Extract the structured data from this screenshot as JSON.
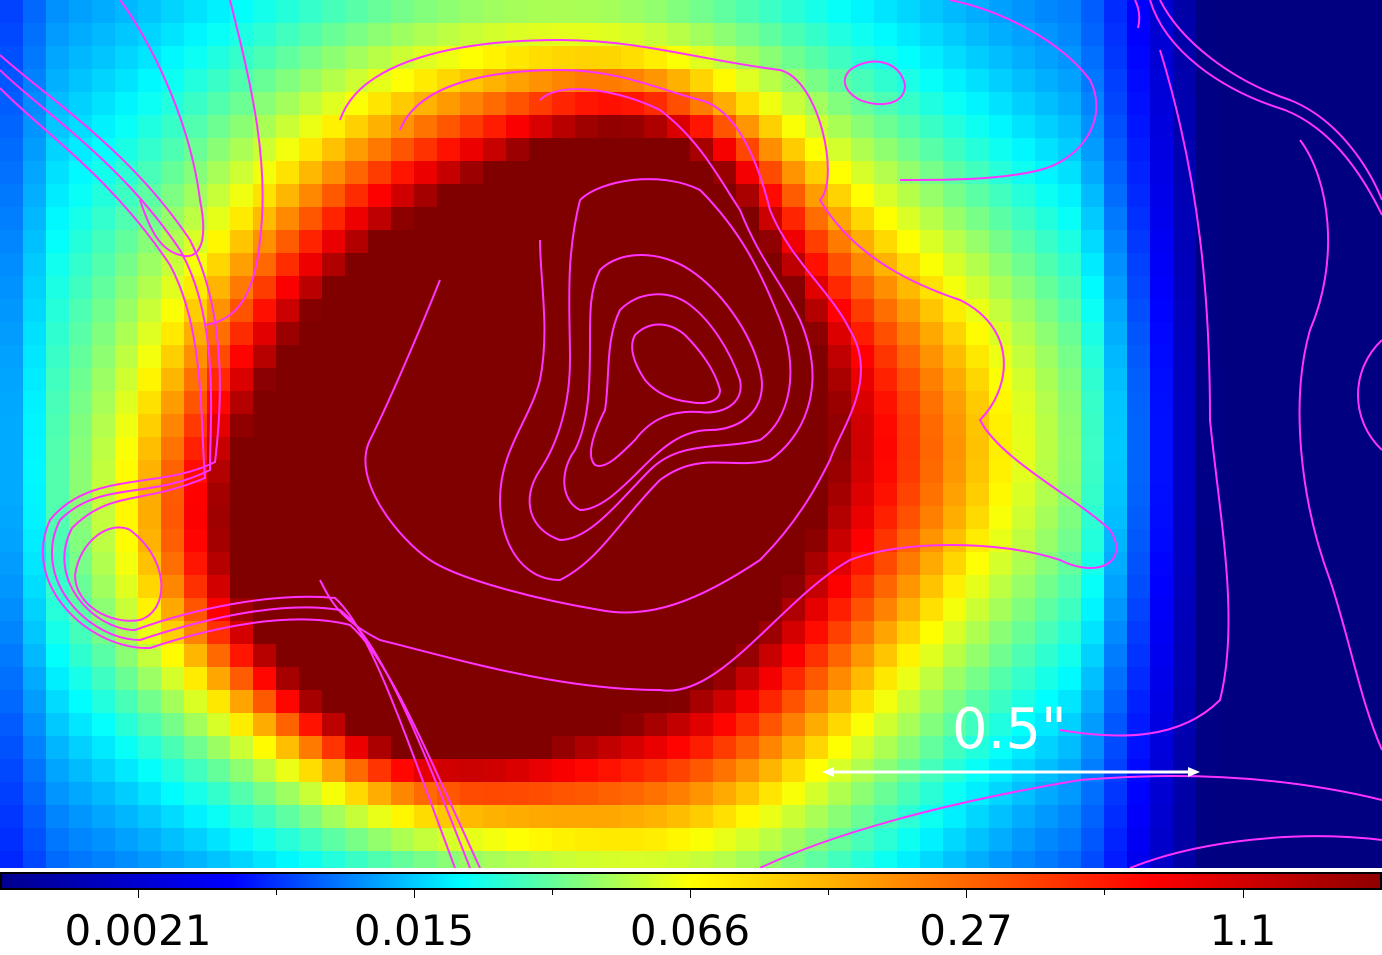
{
  "scale_bar": {
    "label": "0.5\""
  },
  "colorbar": {
    "labels": [
      "0.0021",
      "0.015",
      "0.066",
      "0.27",
      "1.1"
    ],
    "colormap": [
      "#00008f",
      "#0000ff",
      "#00ffff",
      "#ffff00",
      "#ff7f00",
      "#ff0000",
      "#8f0000"
    ]
  },
  "contour_color": "#ff33ff",
  "scalebar_color": "#ffffff"
}
